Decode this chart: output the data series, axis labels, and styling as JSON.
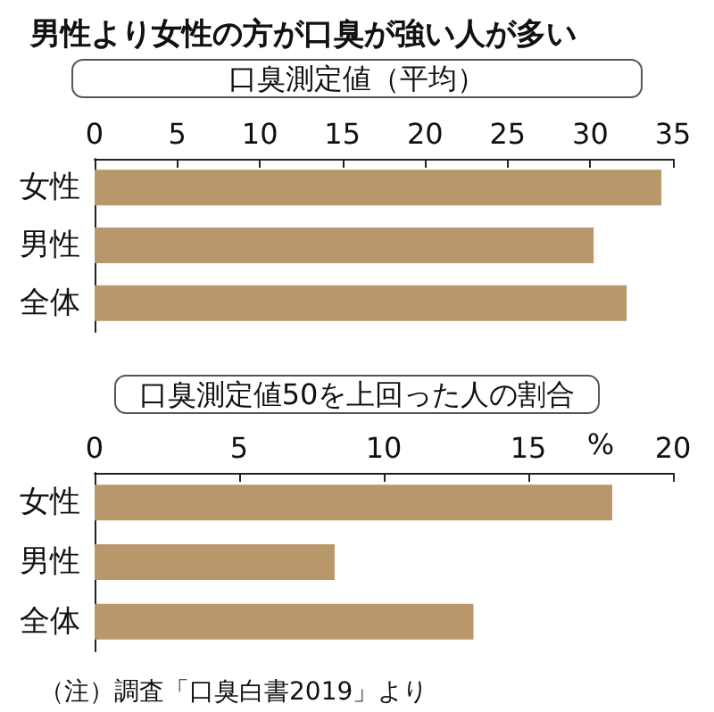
{
  "chart_data": [
    {
      "type": "bar",
      "orientation": "horizontal",
      "title": "男性より女性の方が口臭が強い人が多い",
      "subtitle": "口臭測定値（平均）",
      "categories": [
        "女性",
        "男性",
        "全体"
      ],
      "values": [
        34.3,
        30.2,
        32.2
      ],
      "color": "#b8976a",
      "xlim": [
        0,
        35
      ],
      "xticks": [
        0,
        5,
        10,
        15,
        20,
        25,
        30,
        35
      ],
      "grid": false
    },
    {
      "type": "bar",
      "orientation": "horizontal",
      "title": "口臭測定値50を上回った人の割合",
      "xlabel": "%",
      "categories": [
        "女性",
        "男性",
        "全体"
      ],
      "values": [
        17.9,
        8.3,
        13.1
      ],
      "color": "#b8976a",
      "xlim": [
        0,
        20
      ],
      "xticks": [
        0,
        5,
        10,
        15,
        20
      ],
      "grid": false,
      "annotations": [
        "（注）調査「口臭白書2019」より"
      ]
    }
  ]
}
